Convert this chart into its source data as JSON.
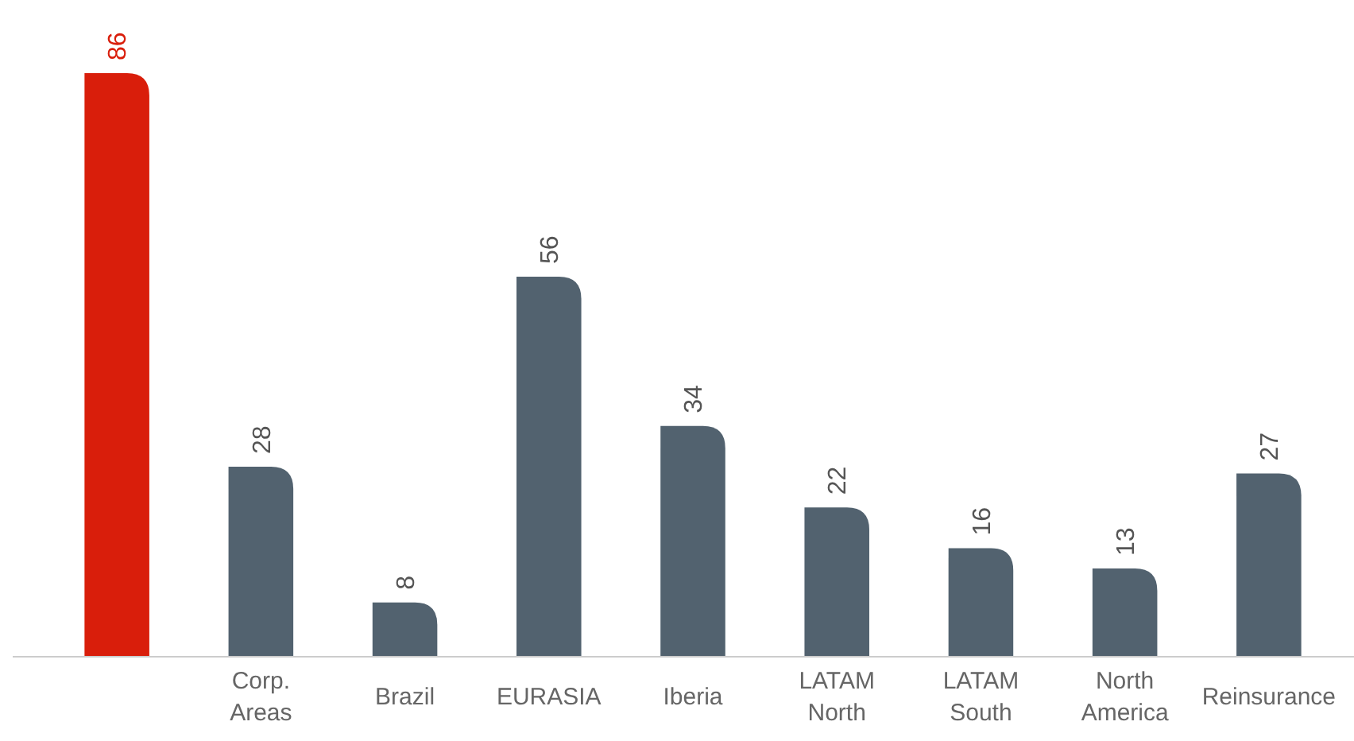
{
  "chart_data": {
    "type": "bar",
    "categories": [
      null,
      "Corp. Areas",
      "Brazil",
      "EURASIA",
      "Iberia",
      "LATAM North",
      "LATAM South",
      "North America",
      "Reinsurance"
    ],
    "values": [
      86,
      28,
      8,
      56,
      34,
      22,
      16,
      13,
      27
    ],
    "colors": [
      "#d91e0b",
      "#52626f",
      "#52626f",
      "#52626f",
      "#52626f",
      "#52626f",
      "#52626f",
      "#52626f",
      "#52626f"
    ],
    "data_labels": true
  }
}
